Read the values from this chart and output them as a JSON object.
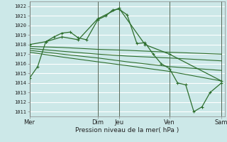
{
  "title": "",
  "xlabel": "Pression niveau de la mer( hPa )",
  "bg_color": "#cce8e8",
  "grid_color": "#ffffff",
  "line_color": "#2d6e2d",
  "vline_color": "#556655",
  "ylim": [
    1010.5,
    1022.5
  ],
  "xlim": [
    0,
    12.0
  ],
  "yticks": [
    1011,
    1012,
    1013,
    1014,
    1015,
    1016,
    1017,
    1018,
    1019,
    1020,
    1021,
    1022
  ],
  "day_labels": [
    "Mer",
    "Dim",
    "Jeu",
    "Ven",
    "Sam"
  ],
  "day_positions": [
    0.0,
    4.2,
    5.5,
    8.6,
    11.8
  ],
  "series1": {
    "x": [
      0,
      0.5,
      1.0,
      1.5,
      2.0,
      2.5,
      3.0,
      3.5,
      4.2,
      4.7,
      5.1,
      5.5,
      6.0,
      6.6,
      7.1,
      7.6,
      8.1,
      8.6,
      9.1,
      9.6,
      10.1,
      10.6,
      11.1,
      11.8
    ],
    "y": [
      1014.5,
      1015.7,
      1018.3,
      1018.8,
      1019.2,
      1019.3,
      1018.7,
      1018.5,
      1020.6,
      1021.0,
      1021.6,
      1021.7,
      1021.1,
      1018.1,
      1018.2,
      1017.0,
      1016.0,
      1015.5,
      1014.0,
      1013.8,
      1011.0,
      1011.5,
      1013.0,
      1014.0
    ]
  },
  "series2": {
    "x": [
      0,
      1.0,
      2.0,
      3.0,
      4.2,
      5.5,
      7.1,
      8.6,
      11.8
    ],
    "y": [
      1018.0,
      1018.3,
      1018.8,
      1018.5,
      1020.7,
      1021.8,
      1018.0,
      1017.0,
      1014.2
    ]
  },
  "series3": {
    "x": [
      0,
      2.0,
      4.2,
      6.0,
      8.6,
      11.8
    ],
    "y": [
      1017.8,
      1017.7,
      1017.5,
      1017.4,
      1017.2,
      1017.0
    ]
  },
  "series4": {
    "x": [
      0,
      2.0,
      4.2,
      6.0,
      8.6,
      11.8
    ],
    "y": [
      1017.6,
      1017.3,
      1017.0,
      1016.8,
      1016.6,
      1016.3
    ]
  },
  "series5": {
    "x": [
      0,
      2.0,
      4.2,
      6.0,
      8.6,
      11.8
    ],
    "y": [
      1017.4,
      1017.0,
      1016.6,
      1016.2,
      1015.7,
      1015.3
    ]
  },
  "series6": {
    "x": [
      0,
      2.0,
      4.2,
      6.0,
      8.6,
      11.8
    ],
    "y": [
      1017.2,
      1016.7,
      1016.2,
      1015.8,
      1015.2,
      1014.2
    ]
  }
}
